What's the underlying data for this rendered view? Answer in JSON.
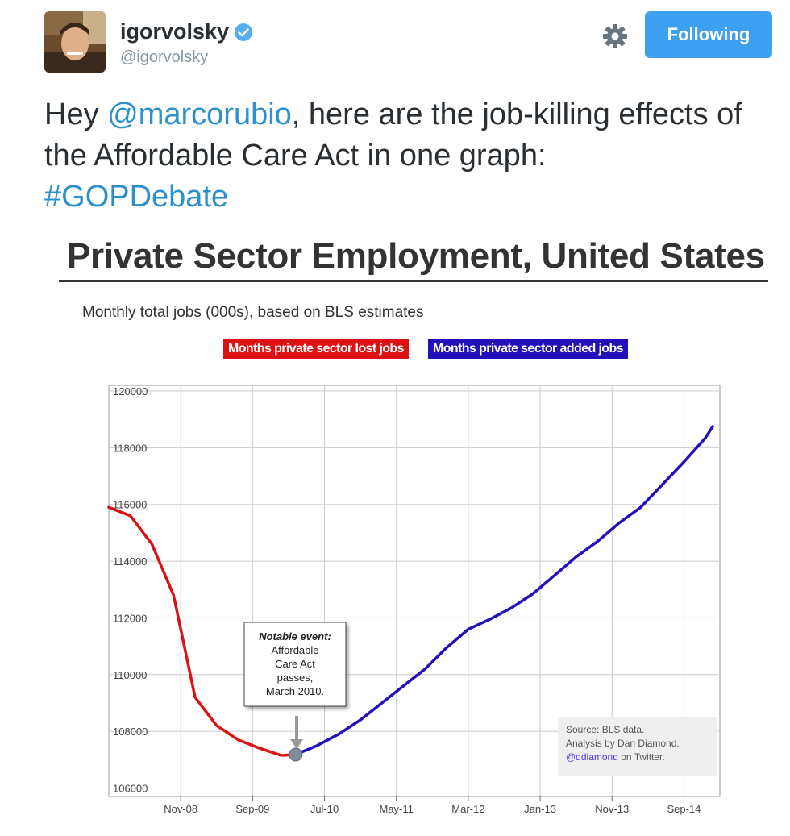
{
  "tweet": {
    "display_name": "igorvolsky",
    "handle": "@igorvolsky",
    "follow_label": "Following",
    "text_before": "Hey ",
    "mention": "@marcorubio",
    "text_after": ", here are the job-killing effects of the Affordable Care Act in one graph:",
    "hashtag": "#GOPDebate",
    "colors": {
      "link": "#2b90cd",
      "follow_button": "#3ea0f0",
      "handle": "#8899a6"
    },
    "icons": [
      "verified-badge-icon",
      "gear-icon"
    ]
  },
  "chart_data": {
    "type": "line",
    "title": "Private Sector Employment, United States",
    "subtitle": "Monthly total jobs (000s), based on BLS estimates",
    "legend": [
      {
        "label": "Months private sector lost jobs",
        "color": "#dd1111"
      },
      {
        "label": "Months private sector added jobs",
        "color": "#2211bb"
      }
    ],
    "x_tick_labels": [
      "Nov-08",
      "Sep-09",
      "Jul-10",
      "May-11",
      "Mar-12",
      "Jan-13",
      "Nov-13",
      "Sep-14"
    ],
    "y_tick_labels": [
      "106000",
      "108000",
      "110000",
      "112000",
      "114000",
      "116000",
      "118000",
      "120000"
    ],
    "ylim": [
      105700,
      120200
    ],
    "grid": true,
    "series": [
      {
        "name": "Months private sector lost jobs",
        "color": "#dd1111",
        "x": [
          "Jan-08",
          "Apr-08",
          "Jul-08",
          "Oct-08",
          "Jan-09",
          "Apr-09",
          "Jul-09",
          "Oct-09",
          "Jan-10",
          "Mar-10"
        ],
        "values": [
          115900,
          115600,
          114600,
          112800,
          109200,
          108200,
          107700,
          107400,
          107150,
          107180
        ]
      },
      {
        "name": "Months private sector added jobs",
        "color": "#2211bb",
        "x": [
          "Mar-10",
          "Jun-10",
          "Sep-10",
          "Dec-10",
          "Mar-11",
          "Jun-11",
          "Sep-11",
          "Dec-11",
          "Mar-12",
          "Jun-12",
          "Sep-12",
          "Dec-12",
          "Mar-13",
          "Jun-13",
          "Sep-13",
          "Dec-13",
          "Mar-14",
          "Jun-14",
          "Sep-14",
          "Dec-14",
          "Jan-15"
        ],
        "values": [
          107180,
          107500,
          107900,
          108400,
          109000,
          109600,
          110200,
          110950,
          111600,
          111950,
          112350,
          112850,
          113500,
          114150,
          114700,
          115350,
          115900,
          116700,
          117500,
          118350,
          118750
        ]
      }
    ],
    "annotation": {
      "heading": "Notable event:",
      "lines": [
        "Affordable",
        "Care Act",
        "passes,",
        "March 2010."
      ],
      "date": "Mar-10"
    },
    "source_note": {
      "line1": "Source: BLS data.",
      "line2": "Analysis by Dan Diamond.",
      "link": "@ddiamond",
      "line3_rest": " on Twitter."
    },
    "colors": {
      "grid": "#cccccc",
      "marker": "#7f8c9a",
      "source_link": "#5533ee"
    }
  }
}
